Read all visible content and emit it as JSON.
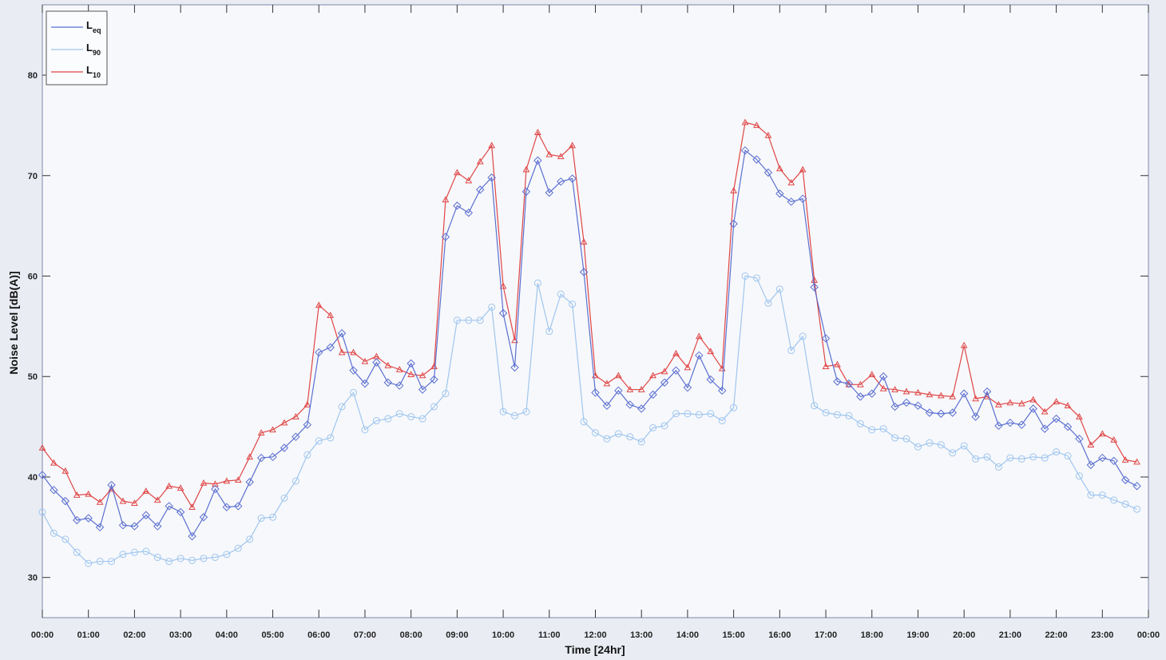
{
  "chart_data": {
    "type": "line",
    "title": "",
    "xlabel": "Time [24hr]",
    "ylabel": "Noise Level [dB(A)]",
    "x_ticks": [
      "00:00",
      "01:00",
      "02:00",
      "03:00",
      "04:00",
      "05:00",
      "06:00",
      "07:00",
      "08:00",
      "09:00",
      "10:00",
      "11:00",
      "12:00",
      "13:00",
      "14:00",
      "15:00",
      "16:00",
      "17:00",
      "18:00",
      "19:00",
      "20:00",
      "21:00",
      "22:00",
      "23:00",
      "00:00"
    ],
    "y_ticks": [
      30,
      40,
      50,
      60,
      70,
      80
    ],
    "ylim": [
      26,
      87
    ],
    "xlim": [
      0,
      24
    ],
    "x_unit": "hours",
    "grid": false,
    "legend_position": "top-left",
    "legend": [
      {
        "main": "L",
        "sub": "eq",
        "color": "#5a6fd0"
      },
      {
        "main": "L",
        "sub": "90",
        "color": "#9fc6ef"
      },
      {
        "main": "L",
        "sub": "10",
        "color": "#e04545"
      }
    ],
    "x": [
      0,
      0.25,
      0.5,
      0.75,
      1,
      1.25,
      1.5,
      1.75,
      2,
      2.25,
      2.5,
      2.75,
      3,
      3.25,
      3.5,
      3.75,
      4,
      4.25,
      4.5,
      4.75,
      5,
      5.25,
      5.5,
      5.75,
      6,
      6.25,
      6.5,
      6.75,
      7,
      7.25,
      7.5,
      7.75,
      8,
      8.25,
      8.5,
      8.75,
      9,
      9.25,
      9.5,
      9.75,
      10,
      10.25,
      10.5,
      10.75,
      11,
      11.25,
      11.5,
      11.75,
      12,
      12.25,
      12.5,
      12.75,
      13,
      13.25,
      13.5,
      13.75,
      14,
      14.25,
      14.5,
      14.75,
      15,
      15.25,
      15.5,
      15.75,
      16,
      16.25,
      16.5,
      16.75,
      17,
      17.25,
      17.5,
      17.75,
      18,
      18.25,
      18.5,
      18.75,
      19,
      19.25,
      19.5,
      19.75,
      20,
      20.25,
      20.5,
      20.75,
      21,
      21.25,
      21.5,
      21.75,
      22,
      22.25,
      22.5,
      22.75,
      23,
      23.25,
      23.5,
      23.75
    ],
    "series": [
      {
        "name": "L10",
        "color": "#e04545",
        "marker": "triangle",
        "values": [
          42.9,
          41.4,
          40.6,
          38.2,
          38.3,
          37.5,
          38.8,
          37.6,
          37.4,
          38.6,
          37.7,
          39.1,
          38.9,
          37.0,
          39.4,
          39.3,
          39.6,
          39.7,
          42.0,
          44.4,
          44.7,
          45.4,
          46.0,
          47.2,
          57.1,
          56.1,
          52.4,
          52.4,
          51.5,
          52.0,
          51.1,
          50.7,
          50.2,
          50.1,
          51.0,
          67.6,
          70.3,
          69.5,
          71.4,
          73.0,
          59.0,
          53.6,
          70.6,
          74.3,
          72.1,
          71.9,
          73.0,
          63.4,
          50.1,
          49.3,
          50.1,
          48.7,
          48.7,
          50.1,
          50.5,
          52.3,
          50.9,
          54.0,
          52.5,
          50.8,
          68.5,
          75.3,
          75.0,
          74.0,
          70.7,
          69.3,
          70.6,
          59.6,
          51.0,
          51.2,
          49.2,
          49.2,
          50.2,
          48.8,
          48.7,
          48.5,
          48.4,
          48.2,
          48.1,
          48.0,
          53.1,
          47.8,
          48.0,
          47.2,
          47.4,
          47.3,
          47.7,
          46.5,
          47.5,
          47.1,
          46.0,
          43.2,
          44.3,
          43.7,
          41.7,
          41.5
        ]
      },
      {
        "name": "Leq",
        "color": "#5a6fd0",
        "marker": "diamond",
        "values": [
          40.2,
          38.7,
          37.6,
          35.7,
          35.9,
          35.0,
          39.2,
          35.2,
          35.1,
          36.2,
          35.1,
          37.1,
          36.5,
          34.1,
          36.0,
          38.8,
          37.0,
          37.1,
          39.5,
          41.9,
          42.0,
          42.9,
          44.0,
          45.2,
          52.4,
          52.9,
          54.3,
          50.6,
          49.3,
          51.4,
          49.4,
          49.1,
          51.3,
          48.7,
          49.7,
          63.9,
          67.0,
          66.3,
          68.6,
          69.8,
          56.3,
          50.9,
          68.4,
          71.5,
          68.3,
          69.4,
          69.7,
          60.4,
          48.4,
          47.1,
          48.6,
          47.2,
          46.8,
          48.2,
          49.4,
          50.6,
          48.9,
          52.1,
          49.7,
          48.6,
          65.2,
          72.5,
          71.6,
          70.3,
          68.2,
          67.4,
          67.7,
          58.9,
          53.8,
          49.5,
          49.3,
          48.0,
          48.3,
          50.0,
          47.0,
          47.4,
          47.1,
          46.4,
          46.3,
          46.4,
          48.3,
          46.0,
          48.5,
          45.1,
          45.4,
          45.2,
          46.8,
          44.8,
          45.8,
          45.0,
          43.8,
          41.2,
          41.9,
          41.6,
          39.7,
          39.1
        ]
      },
      {
        "name": "L90",
        "color": "#9fc6ef",
        "marker": "circle",
        "values": [
          36.5,
          34.4,
          33.8,
          32.5,
          31.4,
          31.6,
          31.6,
          32.3,
          32.5,
          32.6,
          32.0,
          31.6,
          31.9,
          31.7,
          31.9,
          32.0,
          32.3,
          32.9,
          33.8,
          35.9,
          36.0,
          37.9,
          39.6,
          42.2,
          43.6,
          43.9,
          47.0,
          48.4,
          44.7,
          45.6,
          45.8,
          46.3,
          46.0,
          45.8,
          47.0,
          48.3,
          55.6,
          55.6,
          55.6,
          56.9,
          46.5,
          46.1,
          46.5,
          59.3,
          54.5,
          58.2,
          57.2,
          45.5,
          44.4,
          43.8,
          44.3,
          44.0,
          43.5,
          44.9,
          45.1,
          46.3,
          46.3,
          46.2,
          46.3,
          45.6,
          46.9,
          60.0,
          59.8,
          57.3,
          58.7,
          52.6,
          54.0,
          47.1,
          46.4,
          46.2,
          46.1,
          45.3,
          44.7,
          44.8,
          43.9,
          43.8,
          43.0,
          43.4,
          43.2,
          42.4,
          43.1,
          41.8,
          42.0,
          41.0,
          41.9,
          41.8,
          42.0,
          41.9,
          42.5,
          42.1,
          40.1,
          38.2,
          38.2,
          37.7,
          37.3,
          36.8
        ]
      }
    ]
  }
}
